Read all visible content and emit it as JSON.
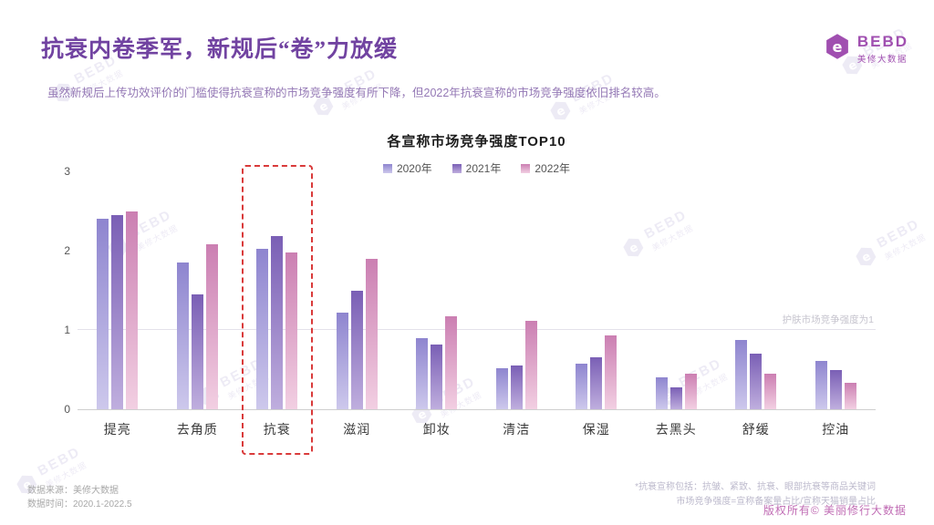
{
  "header": {
    "title": "抗衰内卷季军，新规后“卷”力放缓",
    "subtitle": "虽然新规后上传功效评价的门槛使得抗衰宣称的市场竞争强度有所下降，但2022年抗衰宣称的市场竞争强度依旧排名较高。",
    "logo": {
      "text": "BEBD",
      "subtext": "美修大数据"
    }
  },
  "watermark": {
    "text": "BEBD",
    "subtext": "美修大数据"
  },
  "chart_data": {
    "type": "bar",
    "title": "各宣称市场竞争强度TOP10",
    "categories": [
      "提亮",
      "去角质",
      "抗衰",
      "滋润",
      "卸妆",
      "清洁",
      "保湿",
      "去黑头",
      "舒缓",
      "控油"
    ],
    "series": [
      {
        "name": "2020年",
        "color_top": "#8e85cf",
        "color_bottom": "#cdc8ec",
        "values": [
          2.4,
          1.85,
          2.02,
          1.22,
          0.9,
          0.52,
          0.57,
          0.4,
          0.87,
          0.61
        ]
      },
      {
        "name": "2021年",
        "color_top": "#7a5fb5",
        "color_bottom": "#bfaede",
        "values": [
          2.45,
          1.45,
          2.18,
          1.5,
          0.82,
          0.55,
          0.65,
          0.28,
          0.7,
          0.5
        ]
      },
      {
        "name": "2022年",
        "color_top": "#cb7fb2",
        "color_bottom": "#f2cfe2",
        "values": [
          2.5,
          2.08,
          1.98,
          1.9,
          1.17,
          1.12,
          0.93,
          0.45,
          0.45,
          0.33
        ]
      }
    ],
    "ylim": [
      0,
      3
    ],
    "yticks": [
      0,
      1,
      2,
      3
    ],
    "grid": "off",
    "legend_position": "top-center",
    "reference_line": {
      "value": 1,
      "label": "护肤市场竞争强度为1"
    },
    "highlight_category": "抗衰",
    "footnotes": [
      "*抗衰宣称包括：抗皱、紧致、抗衰、眼部抗衰等商品关键词",
      "市场竞争强度=宣称备案量占比/宣称天猫销量占比"
    ]
  },
  "footer": {
    "source": "数据来源：美修大数据",
    "period": "数据时间：2020.1-2022.5",
    "copyright": "版权所有© 美丽修行大数据"
  }
}
